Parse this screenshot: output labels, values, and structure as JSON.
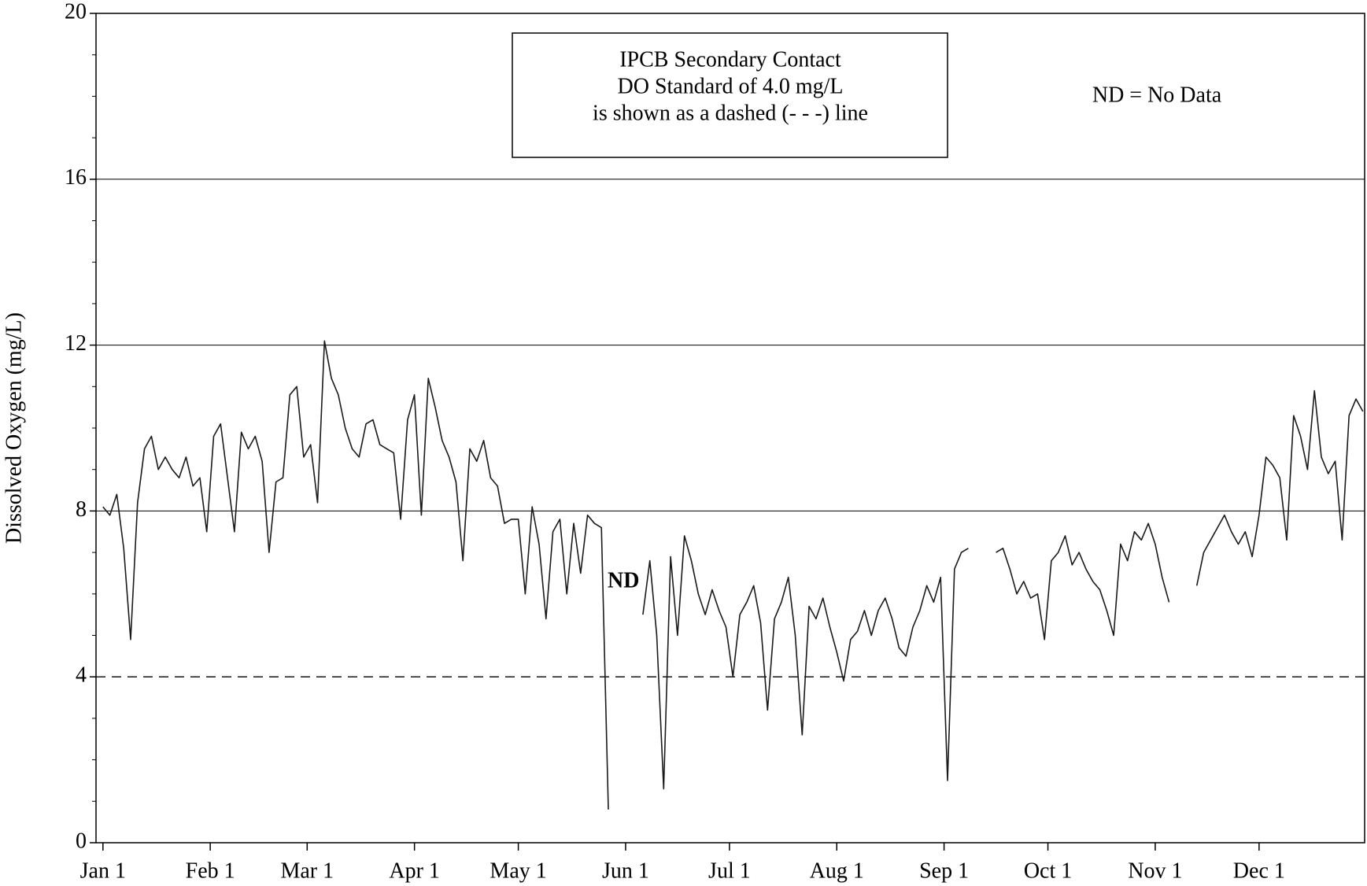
{
  "chart_data": {
    "type": "line",
    "ylabel": "Dissolved Oxygen (mg/L)",
    "annotations": {
      "box": [
        "IPCB Secondary Contact",
        "DO Standard of 4.0 mg/L",
        "is shown as a dashed (- - -) line"
      ],
      "note": "ND = No Data",
      "gap_label": "ND"
    },
    "color": "#1a1a1a",
    "x": [
      0,
      2,
      4,
      6,
      8,
      10,
      12,
      14,
      16,
      18,
      20,
      22,
      24,
      26,
      28,
      30,
      32,
      34,
      36,
      38,
      40,
      42,
      44,
      46,
      48,
      50,
      52,
      54,
      56,
      58,
      60,
      62,
      64,
      66,
      68,
      70,
      72,
      74,
      76,
      78,
      80,
      82,
      84,
      86,
      88,
      90,
      92,
      94,
      96,
      98,
      100,
      102,
      104,
      106,
      108,
      110,
      112,
      114,
      116,
      118,
      120,
      122,
      124,
      126,
      128,
      130,
      132,
      134,
      136,
      138,
      140,
      142,
      144,
      146,
      148,
      150,
      152,
      154,
      156,
      158,
      160,
      162,
      164,
      166,
      168,
      170,
      172,
      174,
      176,
      178,
      180,
      182,
      184,
      186,
      188,
      190,
      192,
      194,
      196,
      198,
      200,
      202,
      204,
      206,
      208,
      210,
      212,
      214,
      216,
      218,
      220,
      222,
      224,
      226,
      228,
      230,
      232,
      234,
      236,
      238,
      240,
      242,
      244,
      246,
      248,
      250,
      252,
      254,
      256,
      258,
      260,
      262,
      264,
      266,
      268,
      270,
      272,
      274,
      276,
      278,
      280,
      282,
      284,
      286,
      288,
      290,
      292,
      294,
      296,
      298,
      300,
      302,
      304,
      306,
      308,
      310,
      312,
      314,
      316,
      318,
      320,
      322,
      324,
      326,
      328,
      330,
      332,
      334,
      336,
      338,
      340,
      342,
      344,
      346,
      348,
      350,
      352,
      354,
      356,
      358,
      360,
      362,
      364
    ],
    "values": [
      8.1,
      7.9,
      8.4,
      7.1,
      4.9,
      8.2,
      9.5,
      9.8,
      9.0,
      9.3,
      9.0,
      8.8,
      9.3,
      8.6,
      8.8,
      7.5,
      9.8,
      10.1,
      8.8,
      7.5,
      9.9,
      9.5,
      9.8,
      9.2,
      7.0,
      8.7,
      8.8,
      10.8,
      11.0,
      9.3,
      9.6,
      8.2,
      12.1,
      11.2,
      10.8,
      10.0,
      9.5,
      9.3,
      10.1,
      10.2,
      9.6,
      9.5,
      9.4,
      7.8,
      10.2,
      10.8,
      7.9,
      11.2,
      10.5,
      9.7,
      9.3,
      8.7,
      6.8,
      9.5,
      9.2,
      9.7,
      8.8,
      8.6,
      7.7,
      7.8,
      7.8,
      6.0,
      8.1,
      7.2,
      5.4,
      7.5,
      7.8,
      6.0,
      7.7,
      6.5,
      7.9,
      7.7,
      7.6,
      0.8,
      null,
      null,
      null,
      null,
      5.5,
      6.8,
      5.0,
      1.3,
      6.9,
      5.0,
      7.4,
      6.8,
      6.0,
      5.5,
      6.1,
      5.6,
      5.2,
      4.0,
      5.5,
      5.8,
      6.2,
      5.3,
      3.2,
      5.4,
      5.8,
      6.4,
      5.0,
      2.6,
      5.7,
      5.4,
      5.9,
      5.2,
      4.6,
      3.9,
      4.9,
      5.1,
      5.6,
      5.0,
      5.6,
      5.9,
      5.4,
      4.7,
      4.5,
      5.2,
      5.6,
      6.2,
      5.8,
      6.4,
      1.5,
      6.6,
      7.0,
      7.1,
      null,
      null,
      null,
      7.0,
      7.1,
      6.6,
      6.0,
      6.3,
      5.9,
      6.0,
      4.9,
      6.8,
      7.0,
      7.4,
      6.7,
      7.0,
      6.6,
      6.3,
      6.1,
      5.6,
      5.0,
      7.2,
      6.8,
      7.5,
      7.3,
      7.7,
      7.2,
      6.4,
      5.8,
      null,
      null,
      null,
      6.2,
      7.0,
      7.3,
      7.6,
      7.9,
      7.5,
      7.2,
      7.5,
      6.9,
      7.9,
      9.3,
      9.1,
      8.8,
      7.3,
      10.3,
      9.8,
      9.0,
      10.9,
      9.3,
      8.9,
      9.2,
      7.3,
      10.3,
      10.7,
      10.4
    ],
    "xlim": [
      -2,
      364.5
    ],
    "xticks": [
      {
        "value": 0,
        "label": "Jan 1"
      },
      {
        "value": 31,
        "label": "Feb 1"
      },
      {
        "value": 59,
        "label": "Mar 1"
      },
      {
        "value": 90,
        "label": "Apr 1"
      },
      {
        "value": 120,
        "label": "May 1"
      },
      {
        "value": 151,
        "label": "Jun 1"
      },
      {
        "value": 181,
        "label": "Jul 1"
      },
      {
        "value": 212,
        "label": "Aug 1"
      },
      {
        "value": 243,
        "label": "Sep 1"
      },
      {
        "value": 273,
        "label": "Oct 1"
      },
      {
        "value": 304,
        "label": "Nov 1"
      },
      {
        "value": 334,
        "label": "Dec 1"
      }
    ],
    "ylim": [
      0,
      20
    ],
    "yticks": [
      0,
      4,
      8,
      12,
      16,
      20
    ],
    "yminorticks": [
      1,
      2,
      3,
      5,
      6,
      7,
      9,
      10,
      11,
      13,
      14,
      15,
      17,
      18,
      19
    ],
    "grid": true,
    "reference_line": {
      "value": 4,
      "style": "dashed"
    }
  }
}
